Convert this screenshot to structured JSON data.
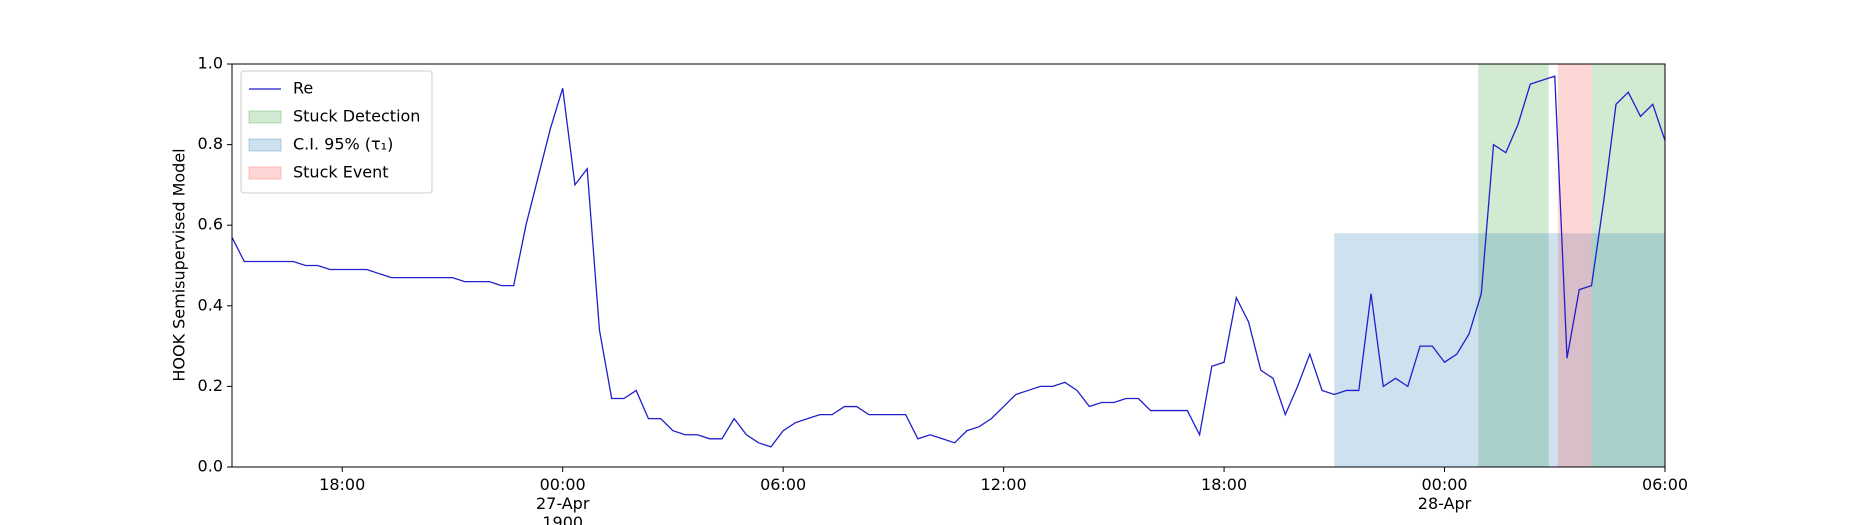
{
  "chart_data": {
    "type": "line",
    "ylabel": "HOOK Semisupervised Model",
    "xlim": [
      "1900-04-26 15:00",
      "1900-04-28 06:00"
    ],
    "ylim": [
      0,
      1
    ],
    "yticks": [
      {
        "value": 0,
        "label": "0.0"
      },
      0.2,
      0.4,
      0.6,
      0.8,
      {
        "value": 1,
        "label": "1.0"
      }
    ],
    "xticks": [
      {
        "value": "1900-04-26 18:00",
        "label": "18:00"
      },
      {
        "value": "1900-04-27 00:00",
        "label": "00:00\n27-Apr\n1900"
      },
      {
        "value": "1900-04-27 06:00",
        "label": "06:00"
      },
      {
        "value": "1900-04-27 12:00",
        "label": "12:00"
      },
      {
        "value": "1900-04-27 18:00",
        "label": "18:00"
      },
      {
        "value": "1900-04-28 00:00",
        "label": "00:00\n28-Apr"
      },
      {
        "value": "1900-04-28 06:00",
        "label": "06:00"
      }
    ],
    "legend": "upper left",
    "x": [
      "1900-04-26 15:00",
      "1900-04-26 15:20",
      "1900-04-26 15:40",
      "1900-04-26 16:00",
      "1900-04-26 16:20",
      "1900-04-26 16:40",
      "1900-04-26 17:00",
      "1900-04-26 17:20",
      "1900-04-26 17:40",
      "1900-04-26 18:00",
      "1900-04-26 18:20",
      "1900-04-26 18:40",
      "1900-04-26 19:00",
      "1900-04-26 19:20",
      "1900-04-26 19:40",
      "1900-04-26 20:00",
      "1900-04-26 20:20",
      "1900-04-26 20:40",
      "1900-04-26 21:00",
      "1900-04-26 21:20",
      "1900-04-26 21:40",
      "1900-04-26 22:00",
      "1900-04-26 22:20",
      "1900-04-26 22:40",
      "1900-04-26 23:00",
      "1900-04-26 23:20",
      "1900-04-26 23:40",
      "1900-04-27 00:00",
      "1900-04-27 00:20",
      "1900-04-27 00:40",
      "1900-04-27 01:00",
      "1900-04-27 01:20",
      "1900-04-27 01:40",
      "1900-04-27 02:00",
      "1900-04-27 02:20",
      "1900-04-27 02:40",
      "1900-04-27 03:00",
      "1900-04-27 03:20",
      "1900-04-27 03:40",
      "1900-04-27 04:00",
      "1900-04-27 04:20",
      "1900-04-27 04:40",
      "1900-04-27 05:00",
      "1900-04-27 05:20",
      "1900-04-27 05:40",
      "1900-04-27 06:00",
      "1900-04-27 06:20",
      "1900-04-27 06:40",
      "1900-04-27 07:00",
      "1900-04-27 07:20",
      "1900-04-27 07:40",
      "1900-04-27 08:00",
      "1900-04-27 08:20",
      "1900-04-27 08:40",
      "1900-04-27 09:00",
      "1900-04-27 09:20",
      "1900-04-27 09:40",
      "1900-04-27 10:00",
      "1900-04-27 10:20",
      "1900-04-27 10:40",
      "1900-04-27 11:00",
      "1900-04-27 11:20",
      "1900-04-27 11:40",
      "1900-04-27 12:00",
      "1900-04-27 12:20",
      "1900-04-27 12:40",
      "1900-04-27 13:00",
      "1900-04-27 13:20",
      "1900-04-27 13:40",
      "1900-04-27 14:00",
      "1900-04-27 14:20",
      "1900-04-27 14:40",
      "1900-04-27 15:00",
      "1900-04-27 15:20",
      "1900-04-27 15:40",
      "1900-04-27 16:00",
      "1900-04-27 16:20",
      "1900-04-27 16:40",
      "1900-04-27 17:00",
      "1900-04-27 17:20",
      "1900-04-27 17:40",
      "1900-04-27 18:00",
      "1900-04-27 18:20",
      "1900-04-27 18:40",
      "1900-04-27 19:00",
      "1900-04-27 19:20",
      "1900-04-27 19:40",
      "1900-04-27 20:00",
      "1900-04-27 20:20",
      "1900-04-27 20:40",
      "1900-04-27 21:00",
      "1900-04-27 21:20",
      "1900-04-27 21:40",
      "1900-04-27 22:00",
      "1900-04-27 22:20",
      "1900-04-27 22:40",
      "1900-04-27 23:00",
      "1900-04-27 23:20",
      "1900-04-27 23:40",
      "1900-04-28 00:00",
      "1900-04-28 00:20",
      "1900-04-28 00:40",
      "1900-04-28 01:00",
      "1900-04-28 01:20",
      "1900-04-28 01:40",
      "1900-04-28 02:00",
      "1900-04-28 02:20",
      "1900-04-28 02:40",
      "1900-04-28 03:00",
      "1900-04-28 03:20",
      "1900-04-28 03:40",
      "1900-04-28 04:00",
      "1900-04-28 04:20",
      "1900-04-28 04:40",
      "1900-04-28 05:00",
      "1900-04-28 05:20",
      "1900-04-28 05:40",
      "1900-04-28 06:00"
    ],
    "series": [
      {
        "name": "Re",
        "color": "#1f1fcc",
        "values": [
          0.57,
          0.51,
          0.51,
          0.51,
          0.51,
          0.51,
          0.5,
          0.5,
          0.49,
          0.49,
          0.49,
          0.49,
          0.48,
          0.47,
          0.47,
          0.47,
          0.47,
          0.47,
          0.47,
          0.46,
          0.46,
          0.46,
          0.45,
          0.45,
          0.6,
          0.72,
          0.84,
          0.94,
          0.7,
          0.74,
          0.34,
          0.17,
          0.17,
          0.19,
          0.12,
          0.12,
          0.09,
          0.08,
          0.08,
          0.07,
          0.07,
          0.12,
          0.08,
          0.06,
          0.05,
          0.09,
          0.11,
          0.12,
          0.13,
          0.13,
          0.15,
          0.15,
          0.13,
          0.13,
          0.13,
          0.13,
          0.07,
          0.08,
          0.07,
          0.06,
          0.09,
          0.1,
          0.12,
          0.15,
          0.18,
          0.19,
          0.2,
          0.2,
          0.21,
          0.19,
          0.15,
          0.16,
          0.16,
          0.17,
          0.17,
          0.14,
          0.14,
          0.14,
          0.14,
          0.08,
          0.25,
          0.26,
          0.42,
          0.36,
          0.24,
          0.22,
          0.13,
          0.2,
          0.28,
          0.19,
          0.18,
          0.19,
          0.19,
          0.43,
          0.2,
          0.22,
          0.2,
          0.3,
          0.3,
          0.26,
          0.28,
          0.33,
          0.43,
          0.8,
          0.78,
          0.85,
          0.95,
          0.96,
          0.97,
          0.27,
          0.44,
          0.45,
          0.66,
          0.9,
          0.93,
          0.87,
          0.9,
          0.81
        ]
      }
    ],
    "spans": [
      {
        "name": "Stuck Detection",
        "color": "#2ca02c",
        "regions": [
          {
            "x0": "1900-04-28 00:55",
            "x1": "1900-04-28 02:50",
            "y0": 0,
            "y1": 1
          },
          {
            "x0": "1900-04-28 04:00",
            "x1": "1900-04-28 06:00",
            "y0": 0,
            "y1": 1
          }
        ]
      },
      {
        "name": "C.I. 95% (τ₁)",
        "color": "#1f77b4",
        "regions": [
          {
            "x0": "1900-04-27 21:00",
            "x1": "1900-04-28 06:00",
            "y0": 0,
            "y1": 0.58
          }
        ]
      },
      {
        "name": "Stuck Event",
        "color": "#ff4444",
        "regions": [
          {
            "x0": "1900-04-28 03:05",
            "x1": "1900-04-28 04:00",
            "y0": 0,
            "y1": 1
          }
        ]
      }
    ]
  }
}
